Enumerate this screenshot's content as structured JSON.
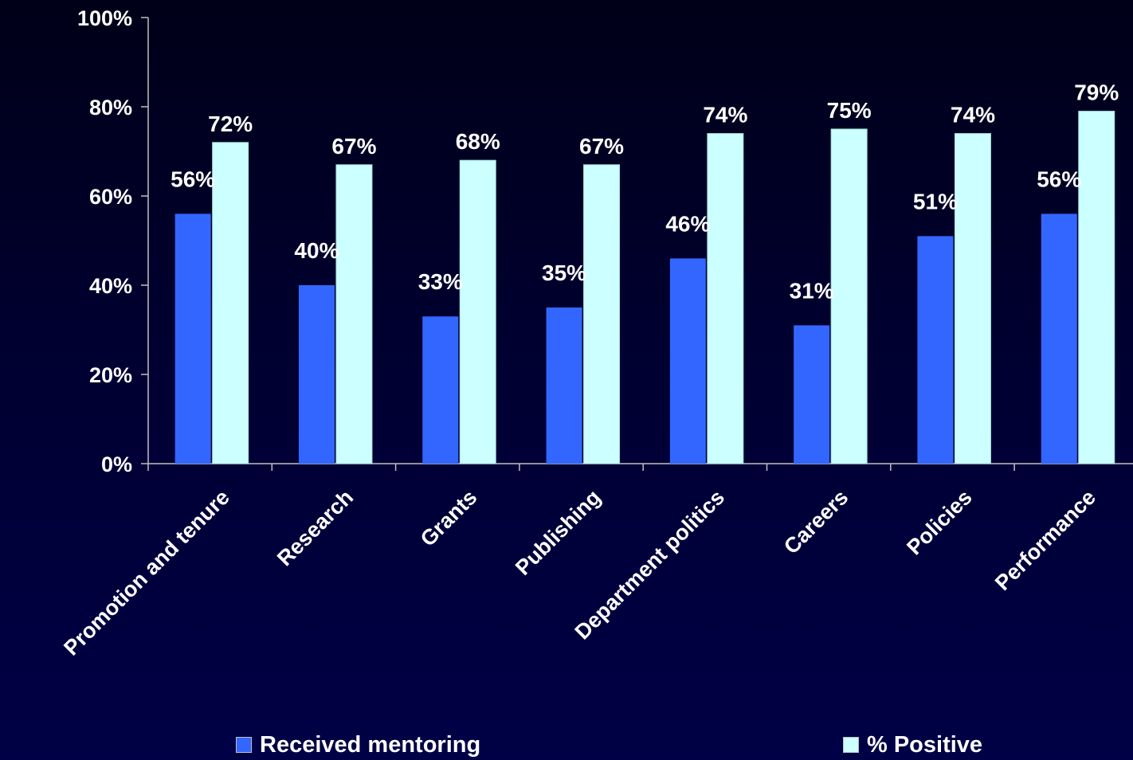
{
  "chart_data": {
    "type": "bar",
    "categories": [
      "Promotion and tenure",
      "Research",
      "Grants",
      "Publishing",
      "Department politics",
      "Careers",
      "Policies",
      "Performance"
    ],
    "series": [
      {
        "name": "Received mentoring",
        "values": [
          56,
          40,
          33,
          35,
          46,
          31,
          51,
          56
        ],
        "labels": [
          "56%",
          "40%",
          "33%",
          "35%",
          "46%",
          "31%",
          "51%",
          "56%"
        ],
        "color": "#3366ff"
      },
      {
        "name": "% Positive",
        "values": [
          72,
          67,
          68,
          67,
          74,
          75,
          74,
          79
        ],
        "labels": [
          "72%",
          "67%",
          "68%",
          "67%",
          "74%",
          "75%",
          "74%",
          "79%"
        ],
        "color": "#ccffff"
      }
    ],
    "ylim": [
      0,
      100
    ],
    "yticks": [
      "0%",
      "20%",
      "40%",
      "60%",
      "80%",
      "100%"
    ],
    "legend_position": "bottom",
    "grid": false
  },
  "legend": {
    "received_label": "Received mentoring",
    "positive_label": "% Positive"
  },
  "colors": {
    "background": "#000030",
    "axis": "#c0c0c0",
    "text": "#ffffff"
  }
}
